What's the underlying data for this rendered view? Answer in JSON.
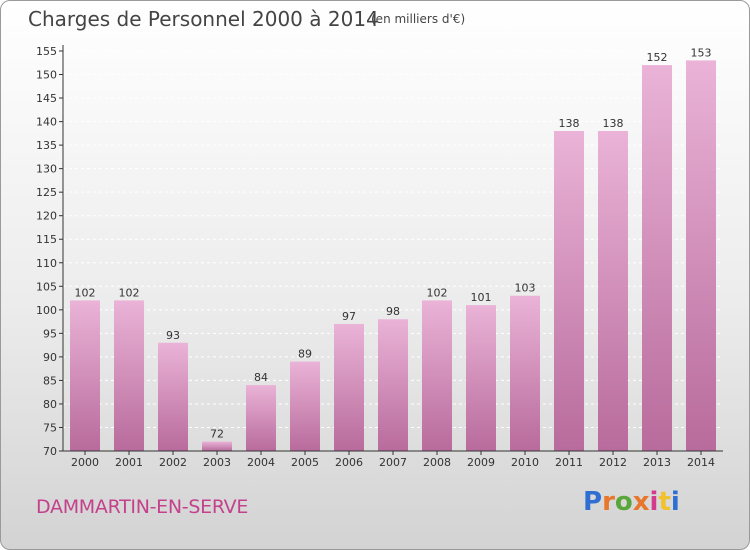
{
  "header": {
    "title": "Charges de Personnel 2000 à 2014",
    "subtitle": "(en milliers d'€)"
  },
  "footer": {
    "commune": "DAMMARTIN-EN-SERVE",
    "logo_text": "Proxiti",
    "logo_colors": [
      "#2f6fd1",
      "#e8762b",
      "#5aa63a",
      "#e8762b",
      "#d33a8c",
      "#f2c12e",
      "#2f6fd1"
    ]
  },
  "colors": {
    "bar_light": "#eab3d7",
    "bar_dark": "#b86b9c",
    "axis": "#333333",
    "grid": "#ffffff"
  },
  "chart_data": {
    "type": "bar",
    "title": "Charges de Personnel 2000 à 2014",
    "subtitle": "(en milliers d'€)",
    "categories": [
      "2000",
      "2001",
      "2002",
      "2003",
      "2004",
      "2005",
      "2006",
      "2007",
      "2008",
      "2009",
      "2010",
      "2011",
      "2012",
      "2013",
      "2014"
    ],
    "values": [
      102,
      102,
      93,
      72,
      84,
      89,
      97,
      98,
      102,
      101,
      103,
      138,
      138,
      152,
      153
    ],
    "ylim": [
      70,
      155
    ],
    "yticks": [
      70,
      75,
      80,
      85,
      90,
      95,
      100,
      105,
      110,
      115,
      120,
      125,
      130,
      135,
      140,
      145,
      150,
      155
    ],
    "grid": true,
    "grid_style": "dashed"
  }
}
